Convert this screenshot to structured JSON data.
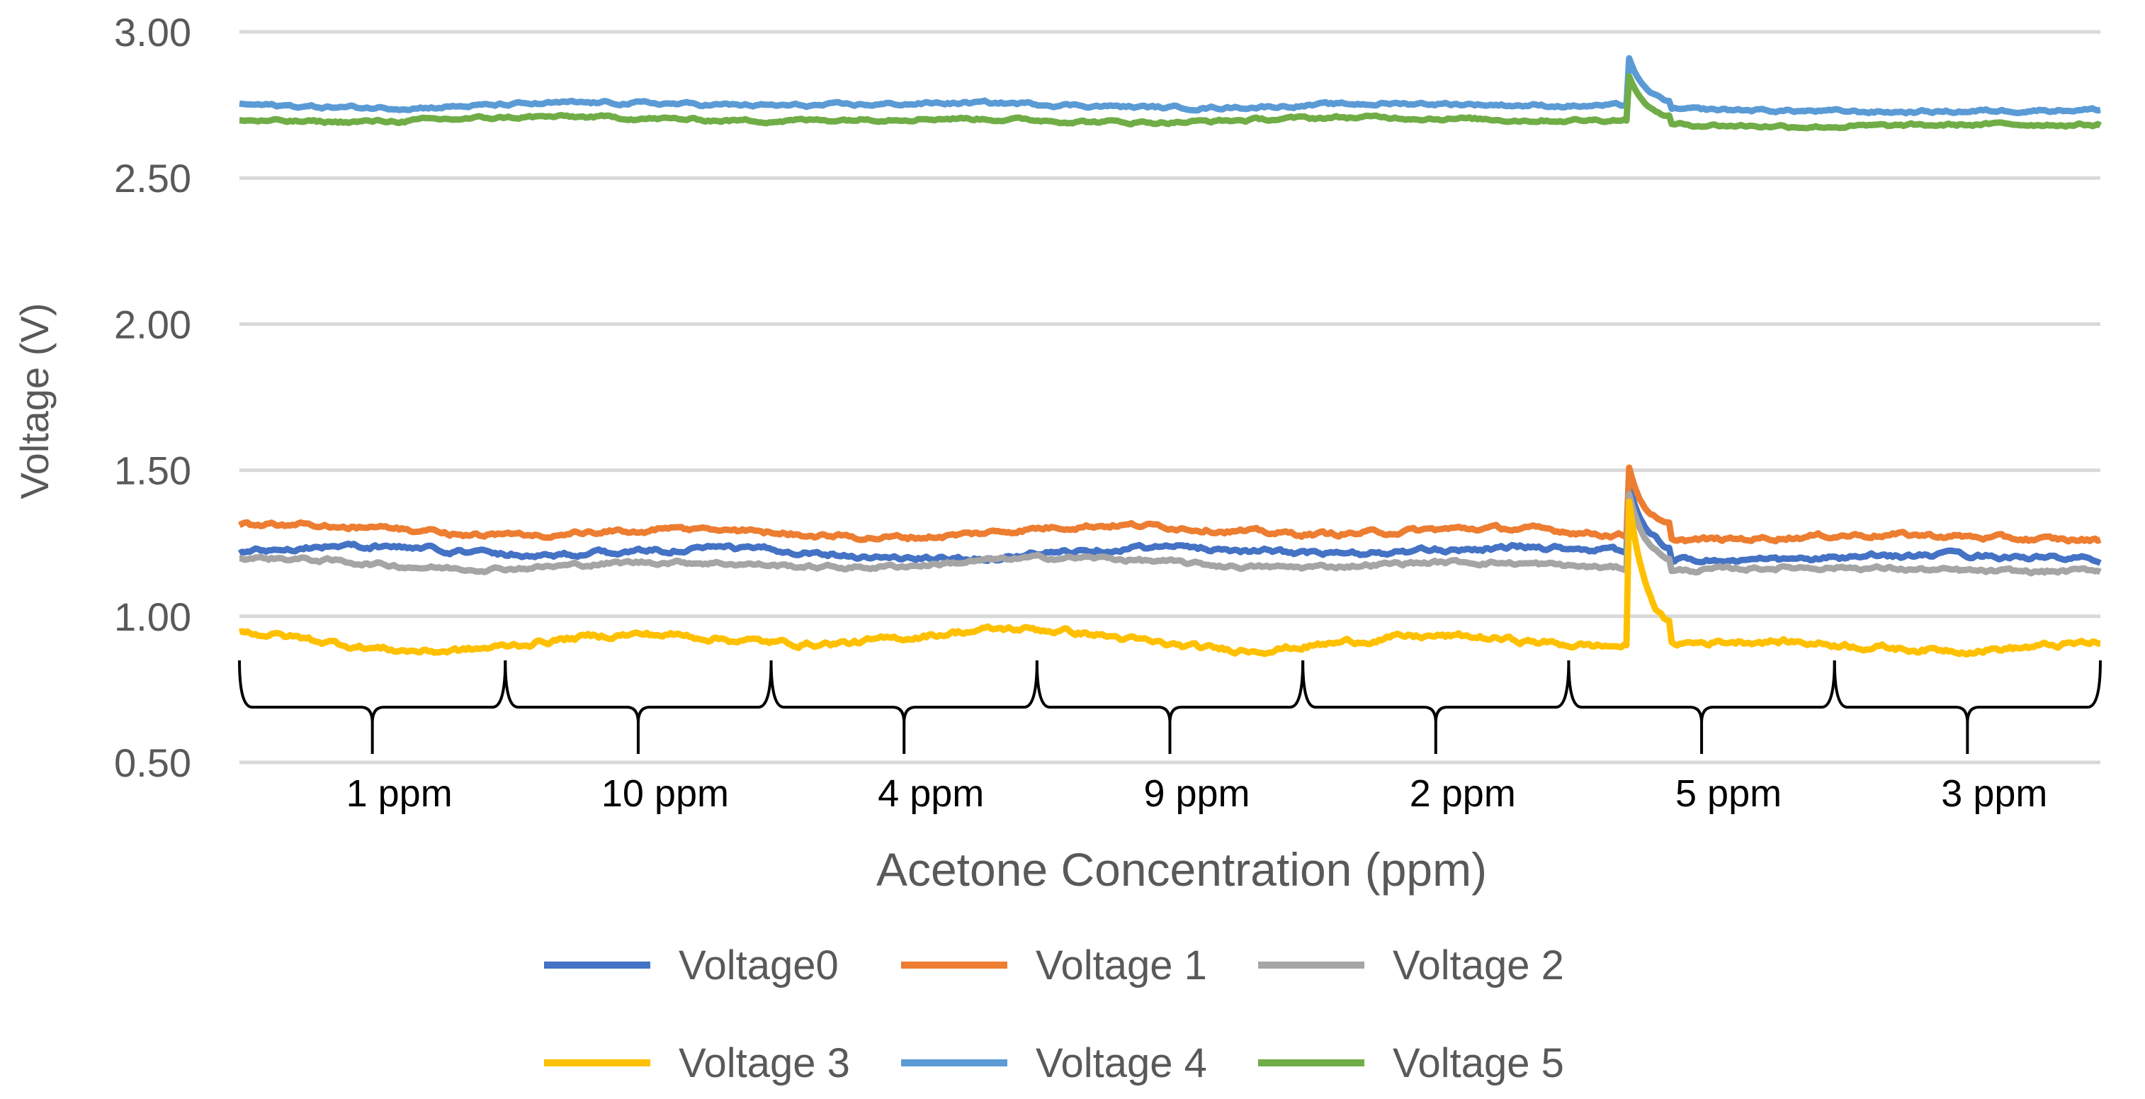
{
  "chart_data": {
    "type": "line",
    "title": "",
    "xlabel": "Acetone Concentration (ppm)",
    "ylabel": "Voltage (V)",
    "ylim": [
      0.5,
      3.0
    ],
    "yticks": [
      "0.50",
      "1.00",
      "1.50",
      "2.00",
      "2.50",
      "3.00"
    ],
    "ytick_values": [
      0.5,
      1.0,
      1.5,
      2.0,
      2.5,
      3.0
    ],
    "grid": true,
    "legend_position": "bottom",
    "n_samples": 700,
    "spike_index": 522,
    "segments": [
      "1 ppm",
      "10 ppm",
      "4 ppm",
      "9 ppm",
      "2 ppm",
      "5 ppm",
      "3 ppm"
    ],
    "series": [
      {
        "name": "Voltage0",
        "color": "#4472C4",
        "baseline": 1.22,
        "spike_peak": 1.45,
        "wave": 0.015,
        "noise": 0.006
      },
      {
        "name": "Voltage 1",
        "color": "#ED7D31",
        "baseline": 1.29,
        "spike_peak": 1.51,
        "wave": 0.015,
        "noise": 0.006
      },
      {
        "name": "Voltage 2",
        "color": "#A5A5A5",
        "baseline": 1.18,
        "spike_peak": 1.42,
        "wave": 0.013,
        "noise": 0.005
      },
      {
        "name": "Voltage 3",
        "color": "#FFC000",
        "baseline": 0.92,
        "spike_peak": 1.39,
        "wave": 0.025,
        "noise": 0.007
      },
      {
        "name": "Voltage 4",
        "color": "#5B9BD5",
        "baseline": 2.75,
        "spike_peak": 2.91,
        "wave": 0.006,
        "noise": 0.004
      },
      {
        "name": "Voltage 5",
        "color": "#70AD47",
        "baseline": 2.7,
        "spike_peak": 2.85,
        "wave": 0.006,
        "noise": 0.004
      }
    ]
  }
}
